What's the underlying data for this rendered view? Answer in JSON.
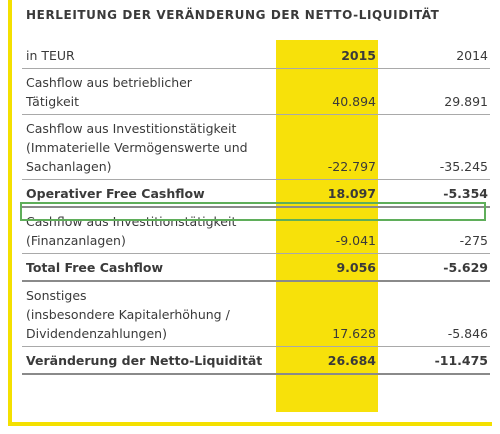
{
  "title": "HERLEITUNG DER VERÄNDERUNG DER NETTO-LIQUIDITÄT",
  "header": {
    "unit": "in TEUR",
    "col_2015": "2015",
    "col_2014": "2014"
  },
  "rows": [
    {
      "label_lines": [
        "Cashflow aus betrieblicher",
        "Tätigkeit"
      ],
      "v2015": "40.894",
      "v2014": "29.891",
      "bold": false
    },
    {
      "label_lines": [
        "Cashflow aus Investitionstätigkeit",
        "(Immaterielle Vermögenswerte und",
        "Sachanlagen)"
      ],
      "v2015": "-22.797",
      "v2014": "-35.245",
      "bold": false
    },
    {
      "label_lines": [
        "Operativer Free Cashflow"
      ],
      "v2015": "18.097",
      "v2014": "-5.354",
      "bold": true
    },
    {
      "label_lines": [
        "Cashflow aus Investitionstätigkeit",
        "(Finanzanlagen)"
      ],
      "v2015": "-9.041",
      "v2014": "-275",
      "bold": false
    },
    {
      "label_lines": [
        "Total Free Cashflow"
      ],
      "v2015": "9.056",
      "v2014": "-5.629",
      "bold": true
    },
    {
      "label_lines": [
        "Sonstiges",
        "(insbesondere Kapitalerhöhung /",
        "Dividendenzahlungen)"
      ],
      "v2015": "17.628",
      "v2014": "-5.846",
      "bold": false
    },
    {
      "label_lines": [
        "Veränderung der Netto-Liquidität"
      ],
      "v2015": "26.684",
      "v2014": "-11.475",
      "bold": true
    }
  ],
  "colors": {
    "accent_yellow": "#f7e10a",
    "highlight_green": "#5fae5a"
  }
}
